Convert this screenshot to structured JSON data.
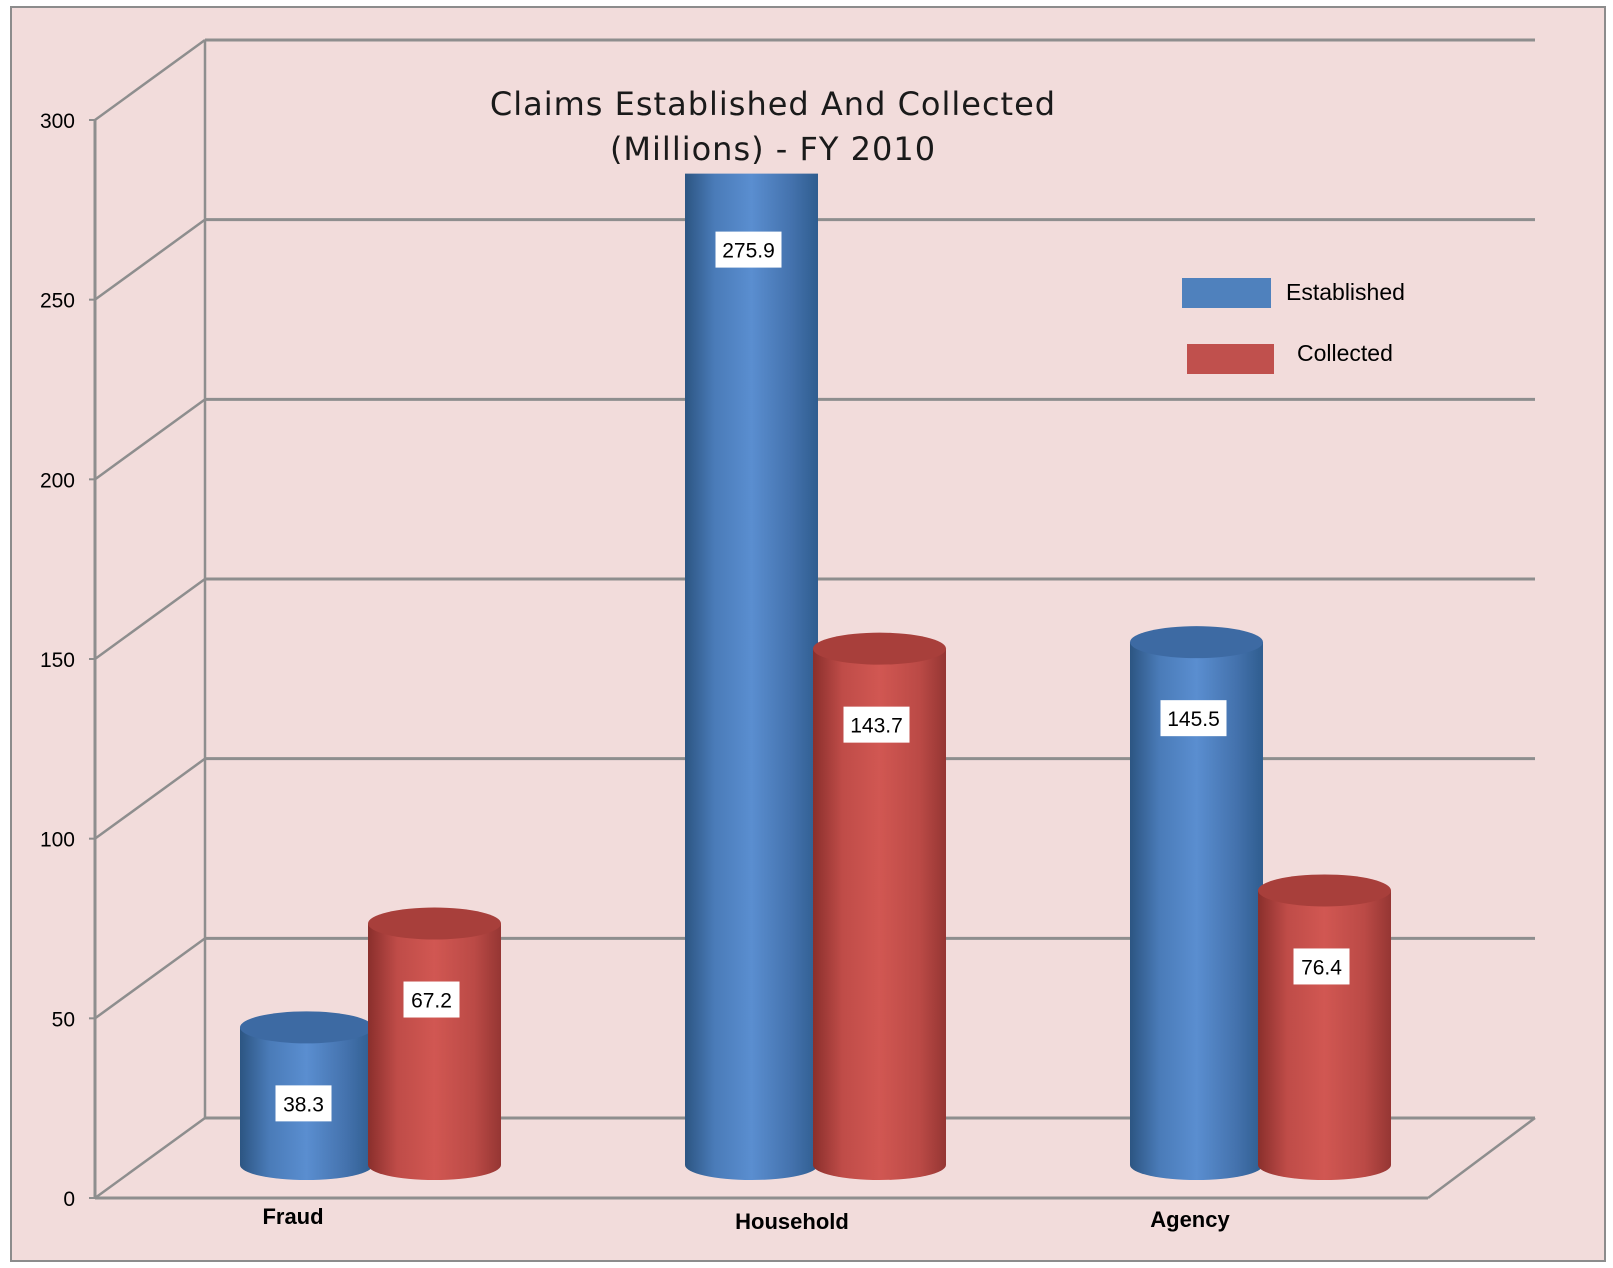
{
  "chart_data": {
    "type": "bar",
    "title": "Claims  Established And Collected",
    "subtitle": "(Millions) - FY 2010",
    "categories": [
      "Fraud",
      "Household",
      "Agency"
    ],
    "series": [
      {
        "name": "Established",
        "values": [
          38.3,
          275.9,
          145.5
        ],
        "color": "#4f81bd",
        "labels": [
          "38.3",
          "275.9",
          "145.5"
        ]
      },
      {
        "name": "Collected",
        "values": [
          67.2,
          143.7,
          76.4
        ],
        "color": "#c0504d",
        "labels": [
          "67.2",
          "143.7",
          "76.4"
        ]
      }
    ],
    "yticks": [
      "0",
      "50",
      "100",
      "150",
      "200",
      "250",
      "300"
    ],
    "ylim": [
      0,
      300
    ],
    "grid": true,
    "legend": "right",
    "xlabel": "",
    "ylabel": ""
  }
}
